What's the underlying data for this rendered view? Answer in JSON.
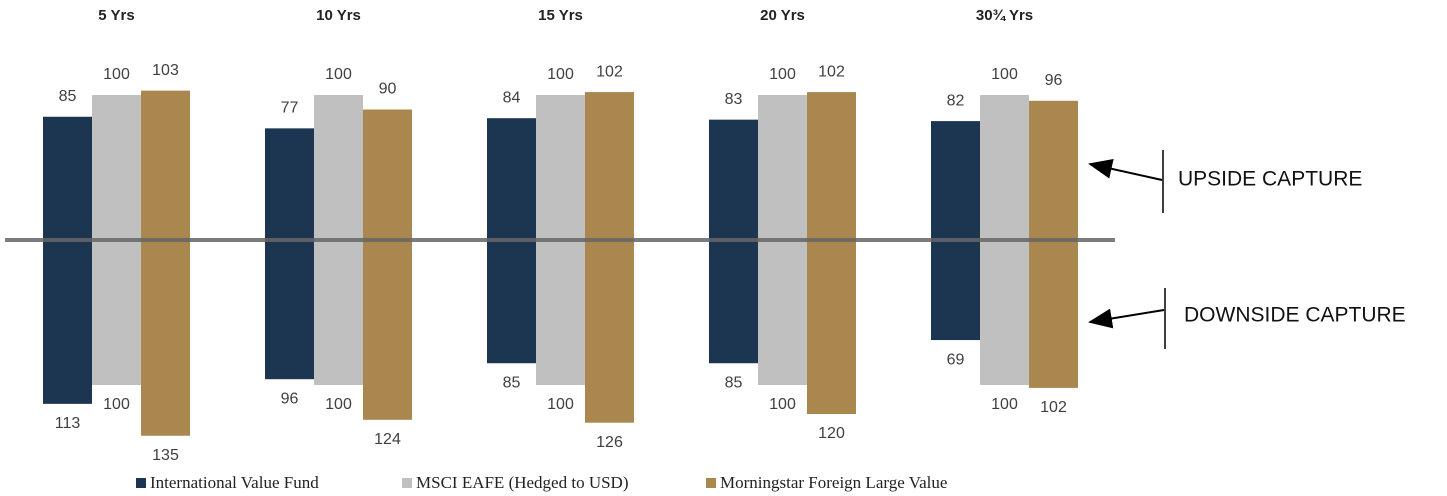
{
  "chart_data": {
    "type": "diverging-bar",
    "categories": [
      "5 Yrs",
      "10 Yrs",
      "15 Yrs",
      "20 Yrs",
      "30¾ Yrs"
    ],
    "series": [
      {
        "name": "International Value Fund",
        "color": "#1c3550",
        "upside": [
          85,
          77,
          84,
          83,
          82
        ],
        "downside": [
          113,
          96,
          85,
          85,
          69
        ]
      },
      {
        "name": "MSCI EAFE (Hedged to USD)",
        "color": "#c0c0c0",
        "upside": [
          100,
          100,
          100,
          100,
          100
        ],
        "downside": [
          100,
          100,
          100,
          100,
          100
        ]
      },
      {
        "name": "Morningstar Foreign Large Value",
        "color": "#a9874e",
        "upside": [
          103,
          90,
          102,
          102,
          96
        ],
        "downside": [
          135,
          124,
          126,
          120,
          102
        ]
      }
    ],
    "annotations": [
      "UPSIDE CAPTURE",
      "DOWNSIDE CAPTURE"
    ]
  }
}
